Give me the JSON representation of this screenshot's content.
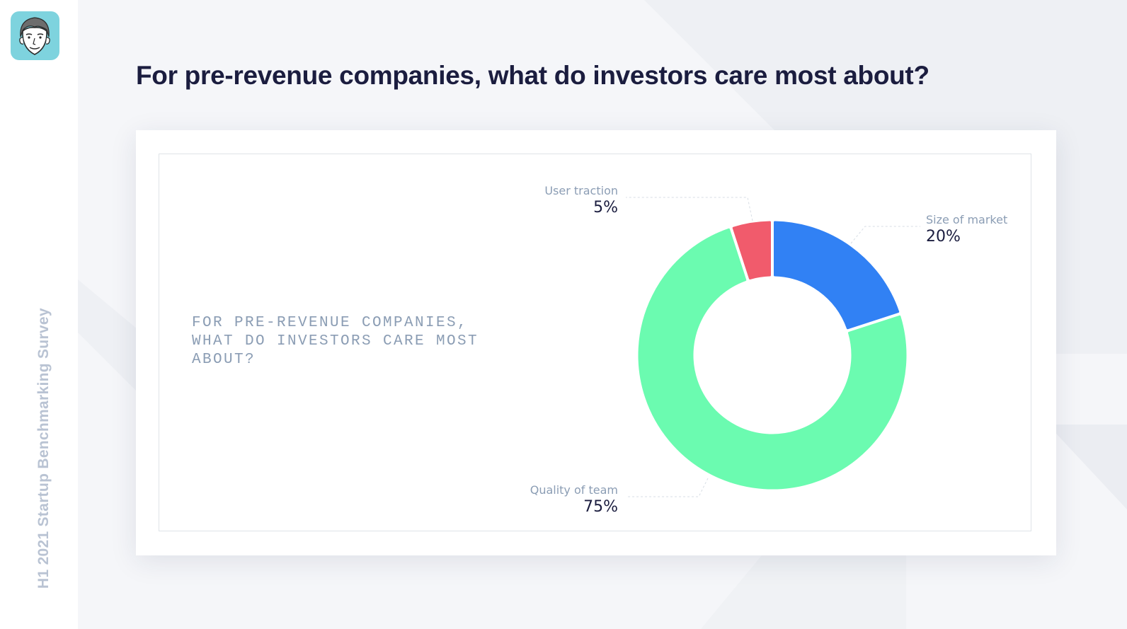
{
  "header": {
    "title": "For pre-revenue companies, what do investors care most about?"
  },
  "sidebar": {
    "vertical_label": "H1 2021 Startup Benchmarking Survey"
  },
  "colors": {
    "title": "#1b1d3f",
    "avatar_bg": "#7ed3de",
    "label_gray": "#8b9db4",
    "value_dark": "#1b1d3f"
  },
  "chart_data": {
    "type": "pie",
    "variant": "donut",
    "title": "FOR PRE-REVENUE COMPANIES, WHAT DO INVESTORS CARE MOST ABOUT?",
    "categories": [
      "Size of market",
      "Quality of team",
      "User traction"
    ],
    "values": [
      20,
      75,
      5
    ],
    "value_labels": [
      "20%",
      "75%",
      "5%"
    ],
    "colors": [
      "#3181f4",
      "#6bfbb0",
      "#f15b6c"
    ],
    "legend": "none"
  }
}
